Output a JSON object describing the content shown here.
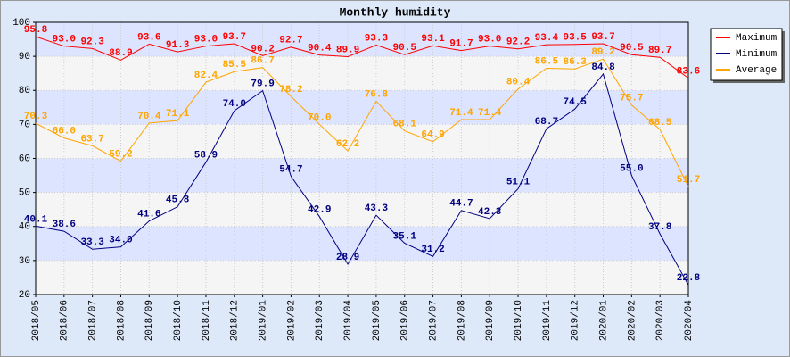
{
  "chart_data": {
    "type": "line",
    "title": "Monthly humidity",
    "categories": [
      "2018/05",
      "2018/06",
      "2018/07",
      "2018/08",
      "2018/09",
      "2018/10",
      "2018/11",
      "2018/12",
      "2019/01",
      "2019/02",
      "2019/03",
      "2019/04",
      "2019/05",
      "2019/06",
      "2019/07",
      "2019/08",
      "2019/09",
      "2019/10",
      "2019/11",
      "2019/12",
      "2020/01",
      "2020/02",
      "2020/03",
      "2020/04"
    ],
    "series": [
      {
        "name": "Maximum",
        "color": "#ff0000",
        "values": [
          95.8,
          93.0,
          92.3,
          88.9,
          93.6,
          91.3,
          93.0,
          93.7,
          90.2,
          92.7,
          90.4,
          89.9,
          93.3,
          90.5,
          93.1,
          91.7,
          93.0,
          92.2,
          93.4,
          93.5,
          93.7,
          90.5,
          89.7,
          83.6
        ],
        "value_labels": [
          "95.8",
          "93.0",
          "92.3",
          "88.9",
          "93.6",
          "91.3",
          "93.0",
          "93.7",
          "90.2",
          "92.7",
          "90.4",
          "89.9",
          "93.3",
          "90.5",
          "93.1",
          "91.7",
          "93.0",
          "92.2",
          "93.4",
          "93.5",
          "93.7",
          "90.5",
          "89.7",
          "83.6"
        ]
      },
      {
        "name": "Minimum",
        "color": "#000080",
        "values": [
          40.1,
          38.6,
          33.3,
          34.0,
          41.6,
          45.8,
          58.9,
          74.0,
          79.9,
          54.7,
          42.9,
          28.9,
          43.3,
          35.1,
          31.2,
          44.7,
          42.3,
          51.1,
          68.7,
          74.5,
          84.8,
          55.0,
          37.8,
          22.8
        ],
        "value_labels": [
          "40.1",
          "38.6",
          "33.3",
          "34.0",
          "41.6",
          "45.8",
          "58.9",
          "74.0",
          "79.9",
          "54.7",
          "42.9",
          "28.9",
          "43.3",
          "35.1",
          "31.2",
          "44.7",
          "42.3",
          "51.1",
          "68.7",
          "74.5",
          "84.8",
          "55.0",
          "37.8",
          "22.8"
        ]
      },
      {
        "name": "Average",
        "color": "#ffa500",
        "values": [
          70.3,
          66.0,
          63.7,
          59.2,
          70.4,
          71.1,
          82.4,
          85.5,
          86.7,
          78.2,
          70.0,
          62.2,
          76.8,
          68.1,
          64.9,
          71.4,
          71.4,
          80.4,
          86.5,
          86.3,
          89.2,
          75.7,
          68.5,
          51.7
        ],
        "value_labels": [
          "70.3",
          "66.0",
          "63.7",
          "59.2",
          "70.4",
          "71.1",
          "82.4",
          "85.5",
          "86.7",
          "78.2",
          "70.0",
          "62.2",
          "76.8",
          "68.1",
          "64.9",
          "71.4",
          "71.4",
          "80.4",
          "86.5",
          "86.3",
          "89.2",
          "75.7",
          "68.5",
          "51.7"
        ]
      }
    ],
    "ylim": [
      20,
      100
    ],
    "yticks": [
      20,
      30,
      40,
      50,
      60,
      70,
      80,
      90,
      100
    ],
    "grid": true,
    "legend": "right"
  }
}
